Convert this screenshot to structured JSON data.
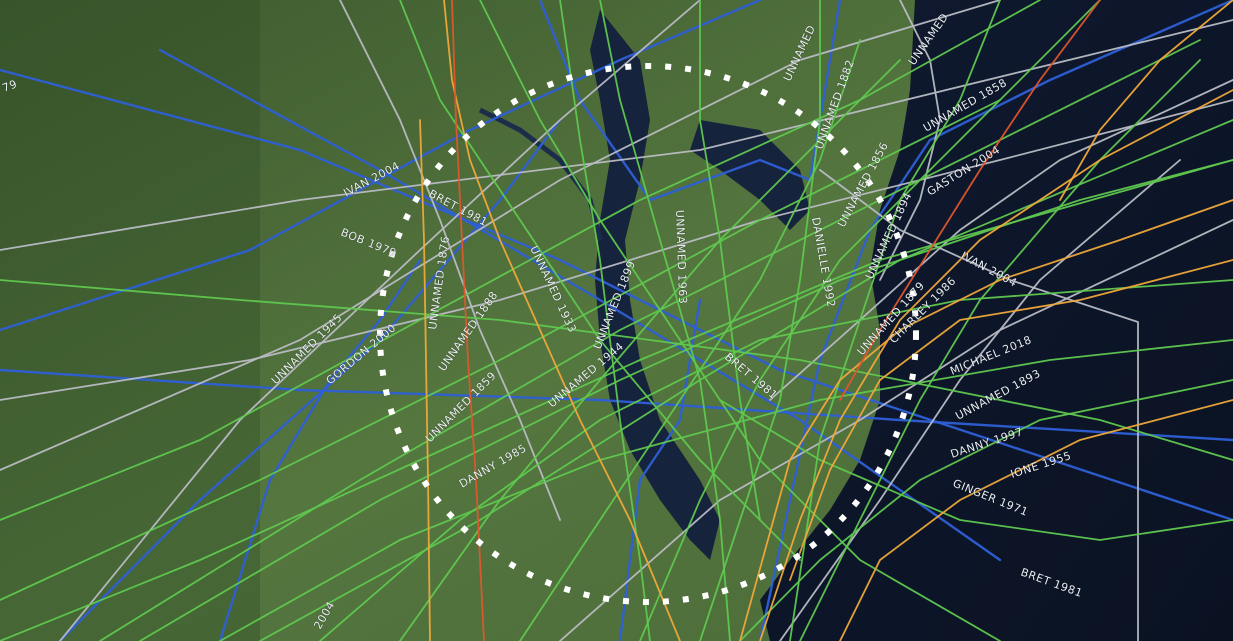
{
  "map": {
    "colors": {
      "land": "#4b6a3a",
      "ocean": "#0f1a2e",
      "bay": "#1a2a44",
      "track_green": "#5fc84f",
      "track_blue": "#2e5fd6",
      "track_gray": "#b9bcc4",
      "track_orange": "#f0a83a",
      "track_red": "#e0562c",
      "region_outline": "#ffffff"
    },
    "labels": {
      "ivan_2004": "IVAN 2004",
      "bret_1981": "BRET 1981",
      "bob_1979": "BOB 1979",
      "unnamed_1876": "UNNAMED 1876",
      "unnamed_1945": "UNNAMED 1945",
      "gordon_2000": "GORDON 2000",
      "unnamed_1888": "UNNAMED 1888",
      "unnamed_1859": "UNNAMED 1859",
      "unnamed_1933": "UNNAMED 1933",
      "unnamed_1944": "UNNAMED 1944",
      "unnamed_1899": "UNNAMED 1899",
      "unnamed_1963": "UNNAMED 1963",
      "danny_1985": "DANNY 1985",
      "unnamed_top": "UNNAMED",
      "unnamed_1882": "UNNAMED 1882",
      "unnamed_1856": "UNNAMED 1856",
      "unnamed_1858": "UNNAMED 1858",
      "unnamed_top2": "UNNAMED",
      "gaston_2004": "GASTON 2004",
      "danielle_1992": "DANIELLE 1992",
      "unnamed_1894": "UNNAMED 1894",
      "unnamed_1879": "UNNAMED 1879",
      "ivan_2004_east": "IVAN 2004",
      "charley_1986": "CHARLEY 1986",
      "michael_2018": "MICHAEL 2018",
      "unnamed_1893": "UNNAMED 1893",
      "danny_1997": "DANNY 1997",
      "ione_1955": "IONE 1955",
      "ginger_1971": "GINGER 1971",
      "bret_1981_south": "BRET 1981",
      "bret_1981_mid": "BRET 1981",
      "edge_79": "79",
      "sw_2004": "2004"
    }
  }
}
